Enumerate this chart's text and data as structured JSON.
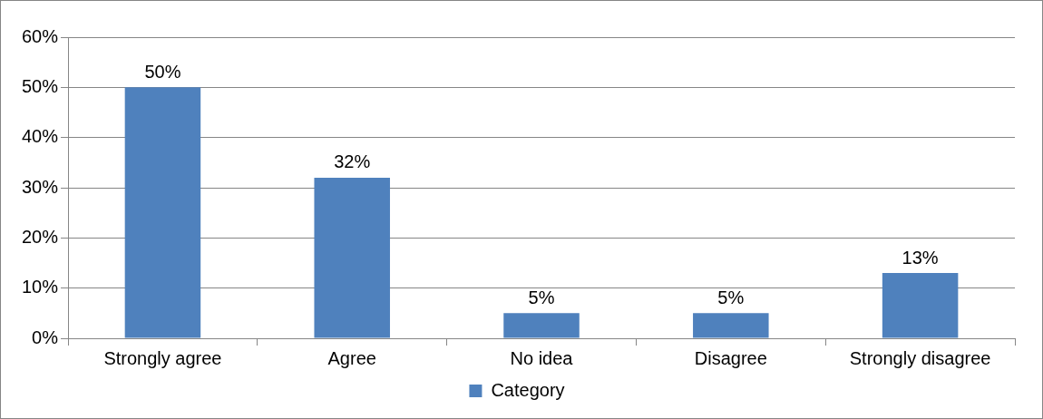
{
  "chart_data": {
    "type": "bar",
    "categories": [
      "Strongly agree",
      "Agree",
      "No idea",
      "Disagree",
      "Strongly disagree"
    ],
    "series": [
      {
        "name": "Category",
        "color": "#4f81bd",
        "values": [
          50,
          32,
          5,
          5,
          13
        ],
        "value_labels": [
          "50%",
          "32%",
          "5%",
          "5%",
          "13%"
        ]
      }
    ],
    "ylim": [
      0,
      60
    ],
    "yticks": [
      {
        "value": 0,
        "label": "0%"
      },
      {
        "value": 10,
        "label": "10%"
      },
      {
        "value": 20,
        "label": "20%"
      },
      {
        "value": 30,
        "label": "30%"
      },
      {
        "value": 40,
        "label": "40%"
      },
      {
        "value": 50,
        "label": "50%"
      },
      {
        "value": 60,
        "label": "60%"
      }
    ],
    "grid": "y",
    "legend": "bottom"
  }
}
